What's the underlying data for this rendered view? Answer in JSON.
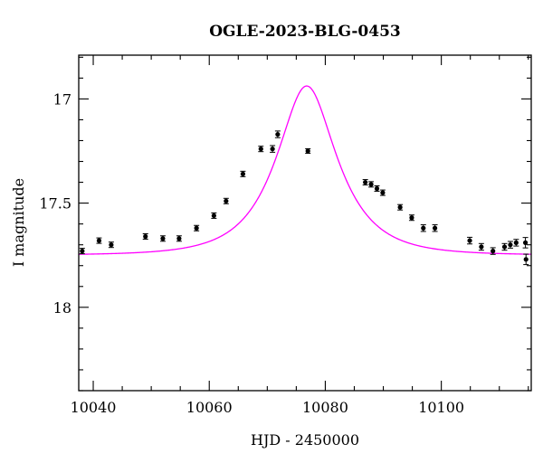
{
  "chart_data": {
    "type": "scatter",
    "title": "OGLE-2023-BLG-0453",
    "xlabel": "HJD - 2450000",
    "ylabel": "I magnitude",
    "xlim": [
      10037.5,
      10115.5
    ],
    "ylim": [
      18.4,
      16.79
    ],
    "y_inverted": true,
    "grid": false,
    "legend": "none",
    "x_ticks": [
      10040,
      10060,
      10080,
      10100
    ],
    "x_tick_labels": [
      "10040",
      "10060",
      "10080",
      "10100"
    ],
    "y_ticks": [
      17,
      17.5,
      18
    ],
    "y_tick_labels": [
      "17",
      "17.5",
      "18"
    ],
    "colors": {
      "model": "#ff00ff",
      "points": "#000000",
      "axes": "#000000"
    },
    "series": [
      {
        "kind": "points",
        "x": [
          10038.1,
          10041.0,
          10043.1,
          10049.0,
          10052.0,
          10054.8,
          10057.8,
          10060.8,
          10062.9,
          10065.8,
          10068.9,
          10070.9,
          10071.8,
          10077.0,
          10086.9,
          10087.9,
          10088.9,
          10089.9,
          10092.9,
          10094.9,
          10096.9,
          10098.9,
          10104.9,
          10106.9,
          10108.9,
          10110.9,
          10111.9,
          10112.9,
          10114.5,
          10114.6
        ],
        "y": [
          17.73,
          17.68,
          17.7,
          17.66,
          17.67,
          17.67,
          17.62,
          17.56,
          17.49,
          17.36,
          17.24,
          17.24,
          17.17,
          17.25,
          17.4,
          17.41,
          17.43,
          17.45,
          17.52,
          17.57,
          17.62,
          17.62,
          17.68,
          17.71,
          17.73,
          17.71,
          17.7,
          17.69,
          17.69,
          17.77
        ],
        "yerr": [
          0.013,
          0.013,
          0.013,
          0.013,
          0.013,
          0.013,
          0.013,
          0.013,
          0.013,
          0.013,
          0.013,
          0.016,
          0.016,
          0.011,
          0.013,
          0.013,
          0.013,
          0.013,
          0.013,
          0.013,
          0.016,
          0.016,
          0.016,
          0.016,
          0.016,
          0.016,
          0.016,
          0.016,
          0.025,
          0.025
        ]
      },
      {
        "kind": "model",
        "t0": 10076.8,
        "tE": 8.8,
        "u0": 0.52,
        "baseline": 17.75
      }
    ]
  }
}
